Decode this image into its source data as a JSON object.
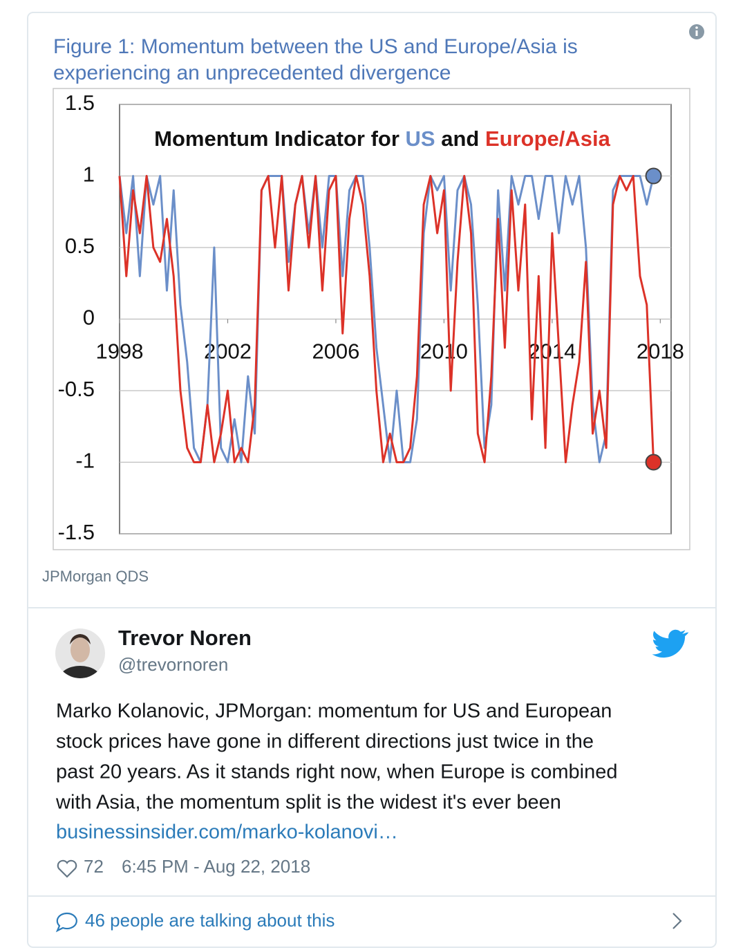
{
  "figure_caption": [
    "Figure 1: Momentum between the US and Europe/Asia is",
    "experiencing an unprecedented divergence"
  ],
  "chart_data": {
    "type": "line",
    "title_prefix": "Momentum Indicator for",
    "title_joiner": "and",
    "x": [
      1998,
      1998.25,
      1998.5,
      1998.75,
      1999,
      1999.25,
      1999.5,
      1999.75,
      2000,
      2000.25,
      2000.5,
      2000.75,
      2001,
      2001.25,
      2001.5,
      2001.75,
      2002,
      2002.25,
      2002.5,
      2002.75,
      2003,
      2003.25,
      2003.5,
      2003.75,
      2004,
      2004.25,
      2004.5,
      2004.75,
      2005,
      2005.25,
      2005.5,
      2005.75,
      2006,
      2006.25,
      2006.5,
      2006.75,
      2007,
      2007.25,
      2007.5,
      2007.75,
      2008,
      2008.25,
      2008.5,
      2008.75,
      2009,
      2009.25,
      2009.5,
      2009.75,
      2010,
      2010.25,
      2010.5,
      2010.75,
      2011,
      2011.25,
      2011.5,
      2011.75,
      2012,
      2012.25,
      2012.5,
      2012.75,
      2013,
      2013.25,
      2013.5,
      2013.75,
      2014,
      2014.25,
      2014.5,
      2014.75,
      2015,
      2015.25,
      2015.5,
      2015.75,
      2016,
      2016.25,
      2016.5,
      2016.75,
      2017,
      2017.25,
      2017.5,
      2017.75
    ],
    "series": [
      {
        "name": "US",
        "color": "#6b8fc9",
        "values": [
          1,
          0.6,
          1,
          0.3,
          1,
          0.8,
          1,
          0.2,
          0.9,
          0.1,
          -0.3,
          -0.9,
          -1,
          -0.6,
          0.5,
          -0.9,
          -1,
          -0.7,
          -1,
          -0.4,
          -0.8,
          0.9,
          1,
          1,
          1,
          0.4,
          0.8,
          1,
          0.6,
          1,
          0.5,
          1,
          1,
          0.3,
          0.9,
          1,
          1,
          0.5,
          -0.2,
          -0.6,
          -1,
          -0.5,
          -1,
          -1,
          -0.7,
          0.6,
          1,
          0.9,
          1,
          0.2,
          0.9,
          1,
          0.8,
          0.1,
          -0.9,
          -0.6,
          0.9,
          0.2,
          1,
          0.8,
          1,
          1,
          0.7,
          1,
          1,
          0.6,
          1,
          0.8,
          1,
          0.5,
          -0.6,
          -1,
          -0.8,
          0.9,
          1,
          1,
          1,
          1,
          0.8,
          1
        ]
      },
      {
        "name": "Europe/Asia",
        "color": "#dc3228",
        "values": [
          1,
          0.3,
          0.9,
          0.6,
          1,
          0.5,
          0.4,
          0.7,
          0.3,
          -0.5,
          -0.9,
          -1,
          -1,
          -0.6,
          -1,
          -0.8,
          -0.5,
          -1,
          -0.9,
          -1,
          -0.6,
          0.9,
          1,
          0.5,
          1,
          0.2,
          0.8,
          1,
          0.5,
          1,
          0.2,
          0.9,
          1,
          -0.1,
          0.7,
          1,
          0.8,
          0.3,
          -0.5,
          -1,
          -0.8,
          -1,
          -1,
          -0.9,
          -0.4,
          0.8,
          1,
          0.6,
          0.9,
          -0.5,
          0.4,
          1,
          0.6,
          -0.8,
          -1,
          -0.4,
          0.7,
          -0.2,
          0.9,
          0.2,
          0.8,
          -0.7,
          0.3,
          -0.9,
          0.6,
          -0.2,
          -1,
          -0.6,
          -0.3,
          0.4,
          -0.8,
          -0.5,
          -0.9,
          0.8,
          1,
          0.9,
          1,
          0.3,
          0.1,
          -1
        ]
      }
    ],
    "xlim": [
      1998,
      2018.4
    ],
    "xticks": [
      1998,
      2002,
      2006,
      2010,
      2014,
      2018
    ],
    "ylim": [
      -1.5,
      1.5
    ],
    "yticks": [
      -1.5,
      -1,
      -0.5,
      0,
      0.5,
      1,
      1.5
    ],
    "grid": true,
    "end_markers": true
  },
  "source": "JPMorgan QDS",
  "tweet": {
    "name": "Trevor Noren",
    "handle": "@trevornoren",
    "text_lines": [
      "Marko Kolanovic, JPMorgan: momentum for US and European",
      "stock prices have gone in different directions just twice in the",
      "past 20 years. As it stands right now, when Europe is combined",
      "with Asia, the momentum split is the widest it's ever been"
    ],
    "link": "businessinsider.com/marko-kolanovi…",
    "likes": 72,
    "timestamp": "6:45 PM - Aug 22, 2018",
    "talking": "46 people are talking about this"
  }
}
